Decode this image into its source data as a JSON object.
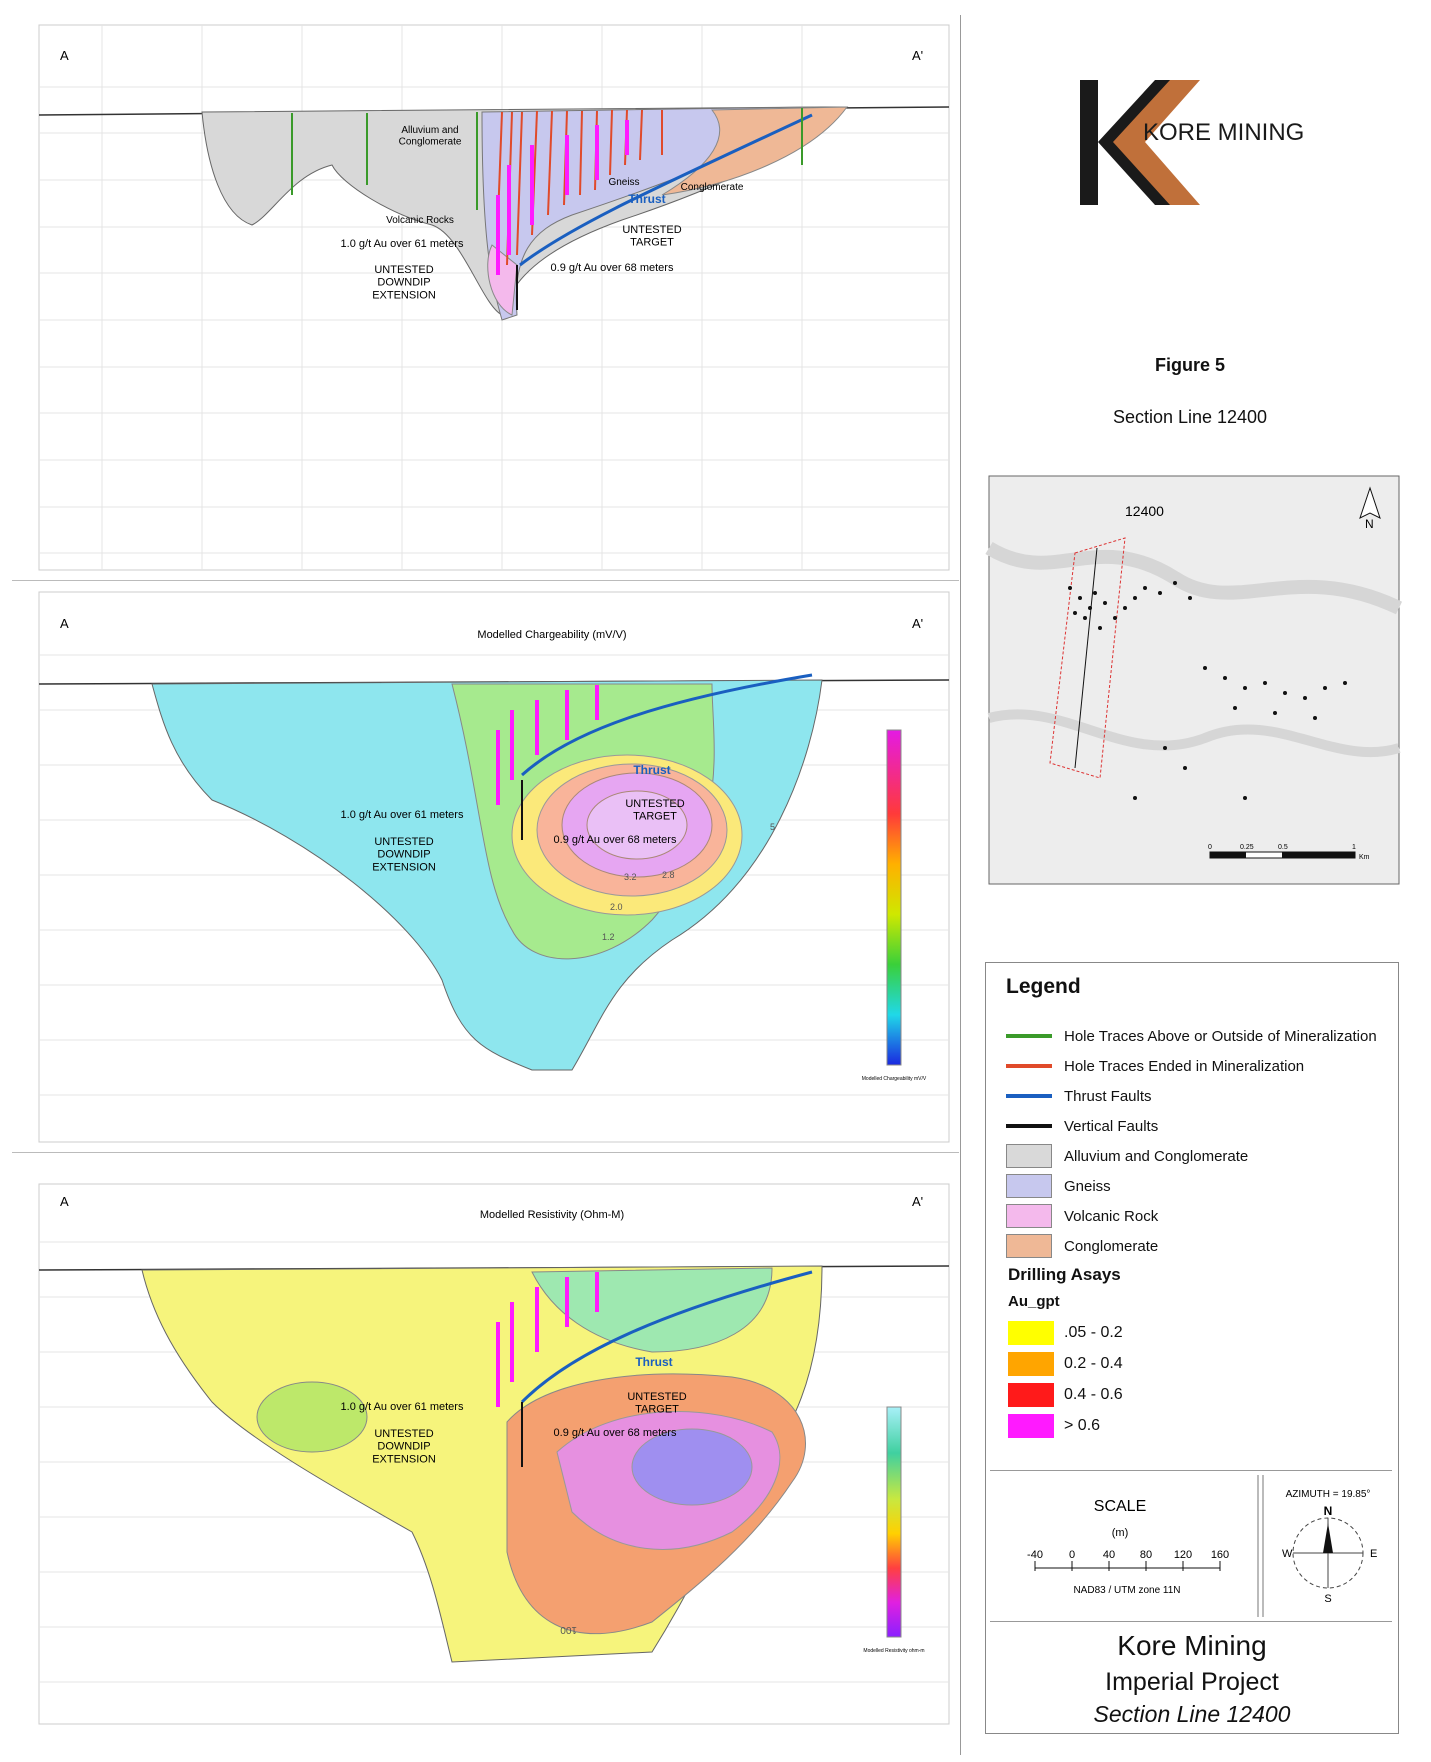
{
  "panels": [
    {
      "id": "geology",
      "left_label": "A",
      "right_label": "A'",
      "title": "",
      "labels": {
        "alluvium": "Alluvium and\nConglomerate",
        "gneiss": "Gneiss",
        "conglomerate": "Conglomerate",
        "thrust": "Thrust",
        "volcanic": "Volcanic Rocks",
        "intercept1": "1.0 g/t Au over 61 meters",
        "intercept2": "0.9 g/t Au over 68 meters",
        "untested_target": "UNTESTED\nTARGET",
        "downdip": "UNTESTED\nDOWNDIP\nEXTENSION"
      }
    },
    {
      "id": "chargeability",
      "left_label": "A",
      "right_label": "A'",
      "title": "Modelled Chargeability (mV/V)",
      "labels": {
        "thrust": "Thrust",
        "intercept1": "1.0 g/t Au over 61 meters",
        "intercept2": "0.9 g/t Au over 68 meters",
        "untested_target": "UNTESTED\nTARGET",
        "downdip": "UNTESTED\nDOWNDIP\nEXTENSION"
      },
      "contours": [
        "2.0",
        "1.2",
        "5",
        "3.2",
        "2.8"
      ],
      "colorbar_label": "Modelled Chargeability mV/V"
    },
    {
      "id": "resistivity",
      "left_label": "A",
      "right_label": "A'",
      "title": "Modelled Resistivity (Ohm-M)",
      "labels": {
        "thrust": "Thrust",
        "intercept1": "1.0 g/t Au over 61 meters",
        "intercept2": "0.9 g/t Au over 68 meters",
        "untested_target": "UNTESTED\nTARGET",
        "downdip": "UNTESTED\nDOWNDIP\nEXTENSION"
      },
      "contours": [
        "100"
      ],
      "colorbar_label": "Modelled Resistivity ohm-m"
    }
  ],
  "logo": {
    "text": "KORE MINING",
    "dark": "#1a1a1a",
    "accent": "#c0703a"
  },
  "figure": {
    "title": "Figure 5",
    "subtitle": "Section Line 12400"
  },
  "map": {
    "section_label": "12400",
    "north": "N",
    "scale_ticks": [
      "0",
      "0.25",
      "0.5",
      "1"
    ],
    "scale_unit": "Km"
  },
  "legend": {
    "title": "Legend",
    "lines": [
      {
        "label": "Hole Traces Above or Outside of Mineralization",
        "color": "#3a9a2a"
      },
      {
        "label": "Hole Traces Ended in Mineralization",
        "color": "#e04a2a"
      },
      {
        "label": "Thrust Faults",
        "color": "#1a5fc0"
      },
      {
        "label": "Vertical Faults",
        "color": "#111111"
      }
    ],
    "units": [
      {
        "label": "Alluvium and Conglomerate",
        "color": "#d9d9d9"
      },
      {
        "label": "Gneiss",
        "color": "#c7c8ee"
      },
      {
        "label": "Volcanic Rock",
        "color": "#f4b9ec"
      },
      {
        "label": "Conglomerate",
        "color": "#efb896"
      }
    ],
    "assays_title": "Drilling Asays",
    "assays_sub": "Au_gpt",
    "assays": [
      {
        "label": ".05 - 0.2",
        "color": "#ffff00"
      },
      {
        "label": "0.2 - 0.4",
        "color": "#ffa500"
      },
      {
        "label": "0.4 - 0.6",
        "color": "#ff1a1a"
      },
      {
        "label": "> 0.6",
        "color": "#ff1aff"
      }
    ]
  },
  "scale": {
    "title": "SCALE",
    "unit": "(m)",
    "ticks": [
      "-40",
      "0",
      "40",
      "80",
      "120",
      "160"
    ],
    "datum": "NAD83 / UTM zone 11N",
    "azimuth": "AZIMUTH = 19.85°",
    "n": "N",
    "s": "S",
    "e": "E",
    "w": "W"
  },
  "title_block": {
    "company": "Kore Mining",
    "project": "Imperial Project",
    "section": "Section Line 12400"
  }
}
